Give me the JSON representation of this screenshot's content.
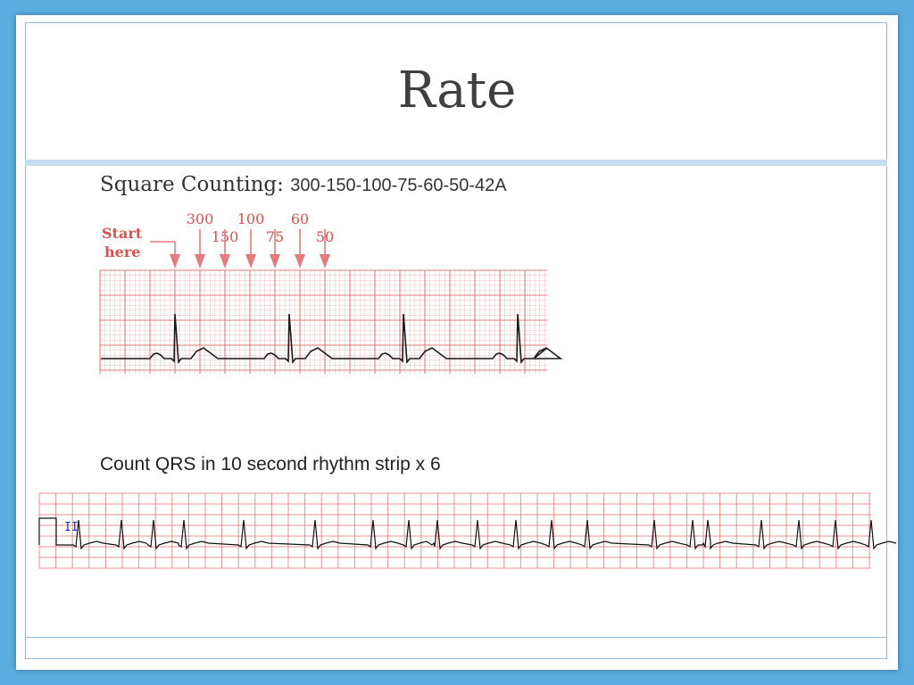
{
  "slide": {
    "title": "Rate",
    "section1_heading": "Square Counting:",
    "section1_sequence": "300-150-100-75-60-50-42A",
    "section2_heading": "Count QRS in 10 second rhythm strip x 6"
  },
  "diagram": {
    "start_label_line1": "Start",
    "start_label_line2": "here",
    "rate_labels_top": [
      "300",
      "100",
      "60"
    ],
    "rate_labels_bottom": [
      "150",
      "75",
      "50"
    ],
    "lead_label": "II"
  },
  "colors": {
    "background": "#5aaee0",
    "grid": "#e07070",
    "arrow": "#e57a80",
    "label": "#d9534f",
    "trace": "#1a1a1a",
    "lead_label": "#2233cc"
  }
}
